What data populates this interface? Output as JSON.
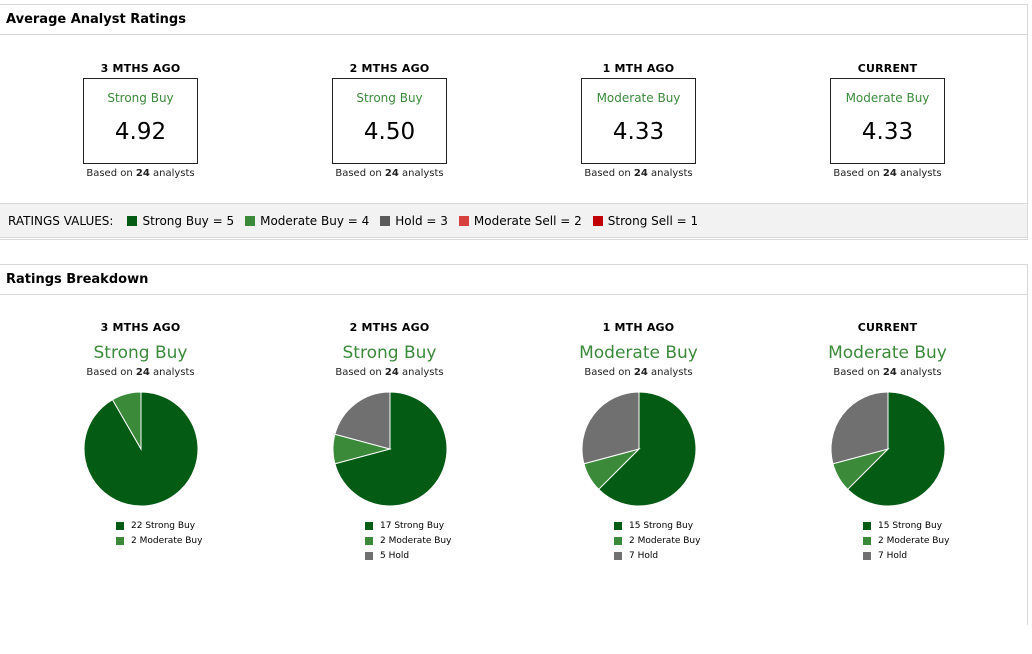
{
  "panel1": {
    "title": "Average Analyst Ratings"
  },
  "panel2": {
    "title": "Ratings Breakdown"
  },
  "based_prefix": "Based on",
  "based_suffix": "analysts",
  "colors": {
    "strong_buy": "#045b14",
    "moderate_buy": "#3a8a3a",
    "hold": "#707070",
    "moderate_sell": "#d94040",
    "strong_sell": "#c00000",
    "label_green": "#3a8a3a"
  },
  "averages": [
    {
      "period": "3 MTHS AGO",
      "rating": "Strong Buy",
      "value": "4.92",
      "analysts": "24"
    },
    {
      "period": "2 MTHS AGO",
      "rating": "Strong Buy",
      "value": "4.50",
      "analysts": "24"
    },
    {
      "period": "1 MTH AGO",
      "rating": "Moderate Buy",
      "value": "4.33",
      "analysts": "24"
    },
    {
      "period": "CURRENT",
      "rating": "Moderate Buy",
      "value": "4.33",
      "analysts": "24"
    }
  ],
  "ratings_values": {
    "title": "RATINGS VALUES:",
    "items": [
      {
        "label": "Strong Buy = 5",
        "color": "#045b14"
      },
      {
        "label": "Moderate Buy = 4",
        "color": "#3a8a3a"
      },
      {
        "label": "Hold = 3",
        "color": "#5a5a5a"
      },
      {
        "label": "Moderate Sell = 2",
        "color": "#d94040"
      },
      {
        "label": "Strong Sell = 1",
        "color": "#c00000"
      }
    ]
  },
  "breakdown": [
    {
      "period": "3 MTHS AGO",
      "rating": "Strong Buy",
      "analysts": "24",
      "legend": [
        "22 Strong Buy",
        "2 Moderate Buy"
      ]
    },
    {
      "period": "2 MTHS AGO",
      "rating": "Strong Buy",
      "analysts": "24",
      "legend": [
        "17 Strong Buy",
        "2 Moderate Buy",
        "5 Hold"
      ]
    },
    {
      "period": "1 MTH AGO",
      "rating": "Moderate Buy",
      "analysts": "24",
      "legend": [
        "15 Strong Buy",
        "2 Moderate Buy",
        "7 Hold"
      ]
    },
    {
      "period": "CURRENT",
      "rating": "Moderate Buy",
      "analysts": "24",
      "legend": [
        "15 Strong Buy",
        "2 Moderate Buy",
        "7 Hold"
      ]
    }
  ],
  "chart_data": [
    {
      "type": "pie",
      "title": "3 MTHS AGO",
      "labels": [
        "Strong Buy",
        "Moderate Buy"
      ],
      "values": [
        22,
        2
      ],
      "colors": [
        "#045b14",
        "#3a8a3a"
      ]
    },
    {
      "type": "pie",
      "title": "2 MTHS AGO",
      "labels": [
        "Strong Buy",
        "Moderate Buy",
        "Hold"
      ],
      "values": [
        17,
        2,
        5
      ],
      "colors": [
        "#045b14",
        "#3a8a3a",
        "#707070"
      ]
    },
    {
      "type": "pie",
      "title": "1 MTH AGO",
      "labels": [
        "Strong Buy",
        "Moderate Buy",
        "Hold"
      ],
      "values": [
        15,
        2,
        7
      ],
      "colors": [
        "#045b14",
        "#3a8a3a",
        "#707070"
      ]
    },
    {
      "type": "pie",
      "title": "CURRENT",
      "labels": [
        "Strong Buy",
        "Moderate Buy",
        "Hold"
      ],
      "values": [
        15,
        2,
        7
      ],
      "colors": [
        "#045b14",
        "#3a8a3a",
        "#707070"
      ]
    }
  ]
}
